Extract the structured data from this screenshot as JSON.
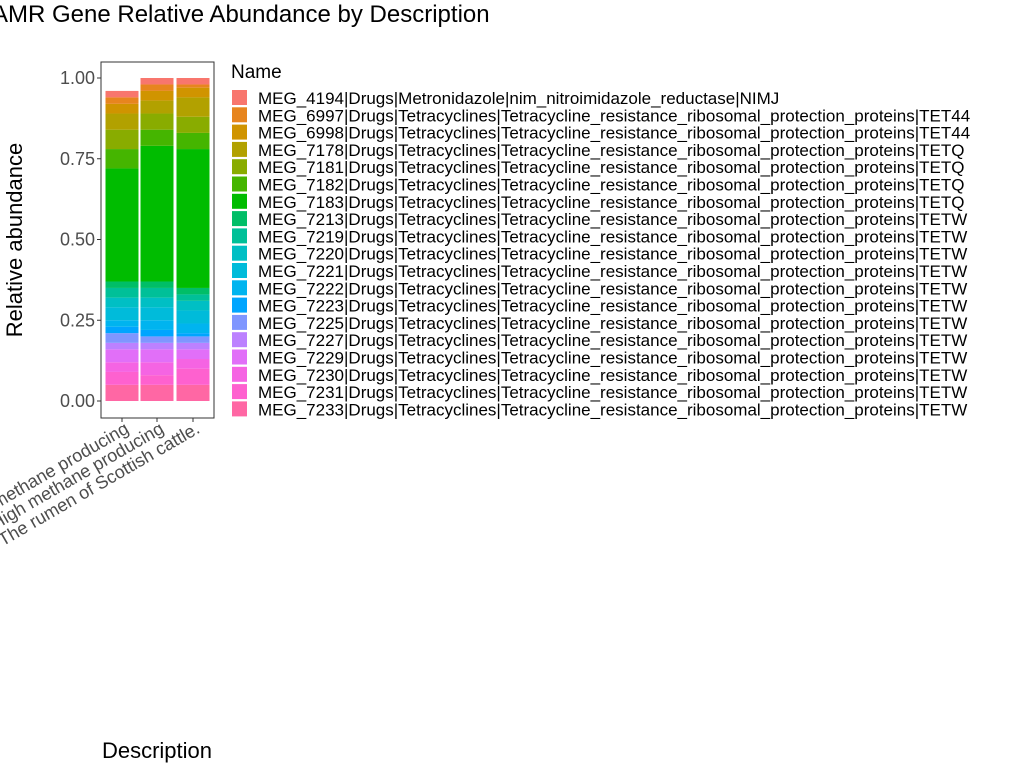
{
  "chart_data": {
    "type": "bar",
    "stacked": true,
    "title": "AMR Gene Relative Abundance by Description",
    "xlabel": "Description",
    "ylabel": "Relative abundance",
    "ylim": [
      0,
      1.05
    ],
    "yticks": [
      0.0,
      0.25,
      0.5,
      0.75,
      1.0
    ],
    "ytick_labels": [
      "0.00",
      "0.25",
      "0.50",
      "0.75",
      "1.00"
    ],
    "categories": [
      "Low methane producing",
      "High methane producing",
      "The rumen of Scottish cattle."
    ],
    "grid": false,
    "legend": {
      "title": "Name",
      "position": "right"
    },
    "series": [
      {
        "name": "MEG_4194|Drugs|Metronidazole|nim_nitroimidazole_reductase|NIMJ",
        "color": "#F8766D",
        "values": [
          0.02,
          0.02,
          0.02
        ]
      },
      {
        "name": "MEG_6997|Drugs|Tetracyclines|Tetracycline_resistance_ribosomal_protection_proteins|TET44",
        "color": "#E7851E",
        "values": [
          0.02,
          0.02,
          0.01
        ]
      },
      {
        "name": "MEG_6998|Drugs|Tetracyclines|Tetracycline_resistance_ribosomal_protection_proteins|TET44",
        "color": "#D09400",
        "values": [
          0.03,
          0.03,
          0.03
        ]
      },
      {
        "name": "MEG_7178|Drugs|Tetracyclines|Tetracycline_resistance_ribosomal_protection_proteins|TETQ",
        "color": "#B2A100",
        "values": [
          0.05,
          0.04,
          0.06
        ]
      },
      {
        "name": "MEG_7181|Drugs|Tetracyclines|Tetracycline_resistance_ribosomal_protection_proteins|TETQ",
        "color": "#89AC00",
        "values": [
          0.06,
          0.05,
          0.05
        ]
      },
      {
        "name": "MEG_7182|Drugs|Tetracyclines|Tetracycline_resistance_ribosomal_protection_proteins|TETQ",
        "color": "#45B500",
        "values": [
          0.06,
          0.05,
          0.05
        ]
      },
      {
        "name": "MEG_7183|Drugs|Tetracyclines|Tetracycline_resistance_ribosomal_protection_proteins|TETQ",
        "color": "#00BC00",
        "values": [
          0.35,
          0.42,
          0.43
        ]
      },
      {
        "name": "MEG_7213|Drugs|Tetracyclines|Tetracycline_resistance_ribosomal_protection_proteins|TETW",
        "color": "#00BE67",
        "values": [
          0.02,
          0.02,
          0.02
        ]
      },
      {
        "name": "MEG_7219|Drugs|Tetracyclines|Tetracycline_resistance_ribosomal_protection_proteins|TETW",
        "color": "#00C098",
        "values": [
          0.03,
          0.03,
          0.02
        ]
      },
      {
        "name": "MEG_7220|Drugs|Tetracyclines|Tetracycline_resistance_ribosomal_protection_proteins|TETW",
        "color": "#00BFC4",
        "values": [
          0.03,
          0.03,
          0.03
        ]
      },
      {
        "name": "MEG_7221|Drugs|Tetracyclines|Tetracycline_resistance_ribosomal_protection_proteins|TETW",
        "color": "#00BBDA",
        "values": [
          0.04,
          0.04,
          0.04
        ]
      },
      {
        "name": "MEG_7222|Drugs|Tetracyclines|Tetracycline_resistance_ribosomal_protection_proteins|TETW",
        "color": "#00B4EF",
        "values": [
          0.02,
          0.03,
          0.03
        ]
      },
      {
        "name": "MEG_7223|Drugs|Tetracyclines|Tetracycline_resistance_ribosomal_protection_proteins|TETW",
        "color": "#00A5FF",
        "values": [
          0.02,
          0.02,
          0.01
        ]
      },
      {
        "name": "MEG_7225|Drugs|Tetracyclines|Tetracycline_resistance_ribosomal_protection_proteins|TETW",
        "color": "#7F96FF",
        "values": [
          0.03,
          0.02,
          0.02
        ]
      },
      {
        "name": "MEG_7227|Drugs|Tetracyclines|Tetracycline_resistance_ribosomal_protection_proteins|TETW",
        "color": "#BC81FF",
        "values": [
          0.02,
          0.02,
          0.02
        ]
      },
      {
        "name": "MEG_7229|Drugs|Tetracyclines|Tetracycline_resistance_ribosomal_protection_proteins|TETW",
        "color": "#E16FF8",
        "values": [
          0.04,
          0.04,
          0.03
        ]
      },
      {
        "name": "MEG_7230|Drugs|Tetracyclines|Tetracycline_resistance_ribosomal_protection_proteins|TETW",
        "color": "#F564E3",
        "values": [
          0.03,
          0.04,
          0.03
        ]
      },
      {
        "name": "MEG_7231|Drugs|Tetracyclines|Tetracycline_resistance_ribosomal_protection_proteins|TETW",
        "color": "#FE61CF",
        "values": [
          0.04,
          0.03,
          0.05
        ]
      },
      {
        "name": "MEG_7233|Drugs|Tetracyclines|Tetracycline_resistance_ribosomal_protection_proteins|TETW",
        "color": "#FF67A4",
        "values": [
          0.05,
          0.05,
          0.05
        ]
      }
    ]
  }
}
